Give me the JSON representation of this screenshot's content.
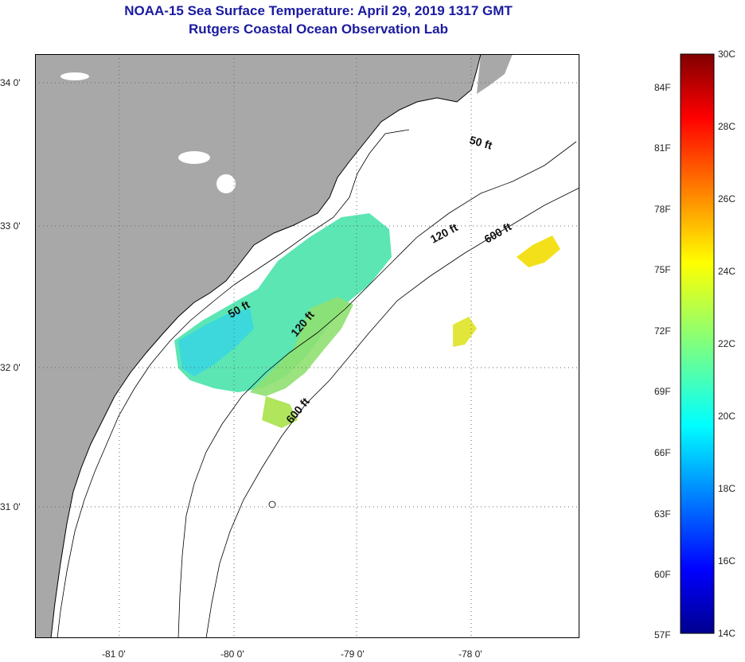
{
  "title": {
    "line1": "NOAA-15 Sea Surface Temperature:  April 29, 2019 1317 GMT",
    "line2": "Rutgers Coastal Ocean Observation Lab"
  },
  "map": {
    "lon_ticks": [
      "-81 0'",
      "-80 0'",
      "-79 0'",
      "-78 0'"
    ],
    "lat_ticks": [
      "34 0'",
      "33 0'",
      "32 0'",
      "31 0'"
    ],
    "contour_labels": [
      "50 ft",
      "120 ft",
      "600 ft",
      "50 ft",
      "120 ft",
      "600 ft"
    ],
    "colors": {
      "land": "#a8a8a8",
      "ocean": "#ffffff",
      "coastline": "#000000"
    }
  },
  "colorbar": {
    "fahrenheit_labels": [
      "84F",
      "81F",
      "78F",
      "75F",
      "72F",
      "69F",
      "66F",
      "63F",
      "60F",
      "57F"
    ],
    "celsius_labels": [
      "30C",
      "28C",
      "26C",
      "24C",
      "22C",
      "20C",
      "18C",
      "16C",
      "14C"
    ],
    "range_c": [
      14,
      30
    ]
  }
}
